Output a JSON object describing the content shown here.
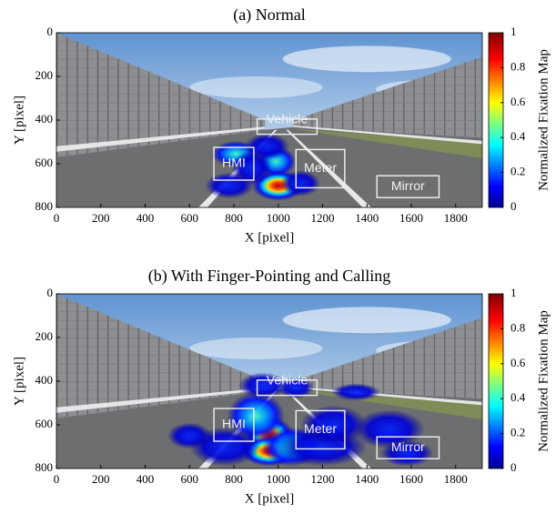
{
  "chart_data": [
    {
      "type": "heatmap",
      "title": "(a) Normal",
      "xlabel": "X [pixel]",
      "ylabel": "Y [pixel]",
      "xlim": [
        0,
        1920
      ],
      "xticks": [
        0,
        200,
        400,
        600,
        800,
        1000,
        1200,
        1400,
        1600,
        1800
      ],
      "ylim": [
        800,
        0
      ],
      "yticks": [
        0,
        200,
        400,
        600,
        800
      ],
      "colorbar": {
        "label": "Normalized Fixation Map",
        "lim": [
          0,
          1
        ],
        "ticks": [
          0,
          0.2,
          0.4,
          0.6,
          0.8,
          1
        ]
      },
      "regions": [
        "Vehicle",
        "HMI",
        "Meter",
        "Mirror"
      ]
    },
    {
      "type": "heatmap",
      "title": "(b) With Finger-Pointing and Calling",
      "xlabel": "X [pixel]",
      "ylabel": "Y [pixel]",
      "xlim": [
        0,
        1920
      ],
      "xticks": [
        0,
        200,
        400,
        600,
        800,
        1000,
        1200,
        1400,
        1600,
        1800
      ],
      "ylim": [
        800,
        0
      ],
      "yticks": [
        0,
        200,
        400,
        600,
        800
      ],
      "colorbar": {
        "label": "Normalized Fixation Map",
        "lim": [
          0,
          1
        ],
        "ticks": [
          0,
          0.2,
          0.4,
          0.6,
          0.8,
          1
        ]
      },
      "regions": [
        "Vehicle",
        "HMI",
        "Meter",
        "Mirror"
      ]
    }
  ]
}
